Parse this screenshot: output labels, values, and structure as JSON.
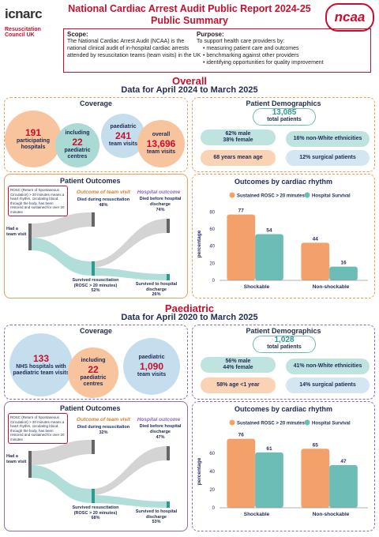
{
  "header": {
    "logo": "icnarc",
    "org": "Resuscitation Council UK",
    "title": "National Cardiac Arrest Audit Public Report 2024-25 Public Summary",
    "badge": "ncaa"
  },
  "scope": {
    "heading": "Scope:",
    "text": "The National Cardiac Arrest Audit (NCAA) is the national clinical audit of in-hospital cardiac arrests attended by resuscitation teams (team visits) in the UK"
  },
  "purpose": {
    "heading": "Purpose:",
    "intro": "To support health care providers by:",
    "items": [
      "measuring patient care and outcomes",
      "benchmarking against other providers",
      "identifying opportunities for quality improvement"
    ]
  },
  "sections": [
    {
      "heading": "Overall",
      "period": "Data for April 2024 to March 2025",
      "coverage": {
        "title": "Coverage",
        "bubbles": [
          {
            "value": "191",
            "label": "participating hospitals"
          },
          {
            "top": "including",
            "value": "22",
            "label": "paediatric centres"
          },
          {
            "top": "paediatric",
            "value": "241",
            "label": "team visits"
          },
          {
            "top": "overall",
            "value": "13,696",
            "label": "team visits"
          }
        ]
      },
      "demographics": {
        "title": "Patient Demographics",
        "total": "13,085",
        "total_label": "total patients",
        "sex": [
          "62% male",
          "38% female"
        ],
        "ethnicity": "16% non-White ethnicities",
        "age": "68 years mean age",
        "surgical": "12% surgical patients"
      },
      "outcomes": {
        "title": "Patient Outcomes",
        "note": "ROSC (Return of Spontaneous Circulation) > 20 minutes means a heart rhythm, circulating blood through the body, has been restored and sustained for over 20 minutes",
        "col1": "Outcome of team visit",
        "col2": "Hospital outcome",
        "start": "Had a team visit",
        "died_resus": "Died during resuscitation",
        "died_resus_pct": "48%",
        "died_hosp": "Died before hospital discharge",
        "died_hosp_pct": "74%",
        "surv_resus": "Survived resuscitation (ROSC > 20 minutes)",
        "surv_resus_pct": "52%",
        "surv_hosp": "Survived to hospital discharge",
        "surv_hosp_pct": "26%"
      }
    },
    {
      "heading": "Paediatric",
      "period": "Data for April 2020 to March 2025",
      "coverage": {
        "title": "Coverage",
        "bubbles": [
          {
            "value": "133",
            "label": "NHS hospitals with paediatric team visits"
          },
          {
            "top": "including",
            "value": "22",
            "label": "paediatric centres"
          },
          {
            "top": "paediatric",
            "value": "1,090",
            "label": "team visits"
          }
        ]
      },
      "demographics": {
        "title": "Patient Demographics",
        "total": "1,028",
        "total_label": "total patients",
        "sex": [
          "56% male",
          "44% female"
        ],
        "ethnicity": "41% non-White ethnicities",
        "age": "58% age <1 year",
        "surgical": "14% surgical patients"
      },
      "outcomes": {
        "title": "Patient Outcomes",
        "note": "ROSC (Return of Spontaneous Circulation) > 20 minutes means a heart rhythm, circulating blood through the body, has been restored and sustained for over 20 minutes",
        "col1": "Outcome of team visit",
        "col2": "Hospital outcome",
        "start": "Had a team visit",
        "died_resus": "Died during resuscitation",
        "died_resus_pct": "32%",
        "died_hosp": "Died before hospital discharge",
        "died_hosp_pct": "47%",
        "surv_resus": "Survived resuscitation (ROSC > 20 minutes)",
        "surv_resus_pct": "68%",
        "surv_hosp": "Survived to hospital discharge",
        "surv_hosp_pct": "53%"
      }
    }
  ],
  "chart_data": [
    {
      "type": "bar",
      "title": "Outcomes by cardiac rhythm",
      "y_label": "percentage",
      "categories": [
        "Shockable",
        "Non-shockable"
      ],
      "series": [
        {
          "name": "Sustained ROSC > 20 minutes",
          "color": "#f4a06a",
          "values": [
            77,
            44
          ]
        },
        {
          "name": "Hospital Survival",
          "color": "#6bbdb5",
          "values": [
            54,
            16
          ]
        }
      ],
      "ylim": [
        0,
        85
      ],
      "yticks": [
        0,
        20,
        40,
        60,
        80
      ]
    },
    {
      "type": "bar",
      "title": "Outcomes by cardiac rhythm",
      "y_label": "percentage",
      "categories": [
        "Shockable",
        "Non-shockable"
      ],
      "series": [
        {
          "name": "Sustained ROSC > 20 minutes",
          "color": "#f4a06a",
          "values": [
            76,
            65
          ]
        },
        {
          "name": "Hospital Survival",
          "color": "#6bbdb5",
          "values": [
            61,
            47
          ]
        }
      ],
      "ylim": [
        0,
        80
      ],
      "yticks": [
        0,
        20,
        40,
        60
      ]
    }
  ]
}
